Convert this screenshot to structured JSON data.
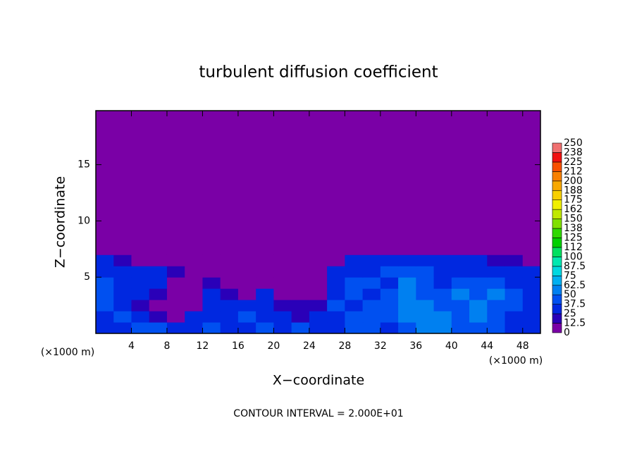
{
  "chart_data": {
    "type": "heatmap",
    "title": "turbulent diffusion coefficient",
    "xlabel": "X−coordinate",
    "ylabel": "Z−coordinate",
    "x_unit": "(×1000 m)",
    "y_unit": "(×1000 m)",
    "footer": "CONTOUR INTERVAL = 2.000E+01",
    "xlim": [
      0,
      50
    ],
    "ylim": [
      0,
      19.8
    ],
    "xticks": [
      4,
      8,
      12,
      16,
      20,
      24,
      28,
      32,
      36,
      40,
      44,
      48
    ],
    "yticks": [
      5,
      10,
      15
    ],
    "x_edges": [
      0,
      2,
      4,
      6,
      8,
      10,
      12,
      14,
      16,
      18,
      20,
      22,
      24,
      26,
      28,
      30,
      32,
      34,
      36,
      38,
      40,
      42,
      44,
      46,
      48,
      50
    ],
    "y_edges": [
      0,
      1,
      2,
      3,
      4,
      5,
      6,
      7,
      8,
      19.8
    ],
    "z": [
      [
        30,
        35,
        40,
        40,
        35,
        30,
        45,
        30,
        35,
        40,
        30,
        40,
        35,
        30,
        45,
        40,
        35,
        45,
        50,
        55,
        40,
        45,
        40,
        35,
        30
      ],
      [
        35,
        40,
        30,
        20,
        10,
        25,
        35,
        30,
        40,
        35,
        25,
        20,
        30,
        35,
        40,
        40,
        45,
        60,
        55,
        50,
        45,
        50,
        40,
        35,
        30
      ],
      [
        40,
        30,
        20,
        10,
        5,
        10,
        30,
        35,
        30,
        25,
        15,
        15,
        20,
        40,
        35,
        40,
        45,
        55,
        60,
        45,
        45,
        60,
        45,
        40,
        35
      ],
      [
        45,
        35,
        25,
        15,
        5,
        5,
        35,
        20,
        10,
        30,
        5,
        5,
        10,
        30,
        40,
        35,
        40,
        55,
        45,
        40,
        50,
        45,
        50,
        40,
        35
      ],
      [
        40,
        35,
        30,
        25,
        10,
        5,
        15,
        5,
        5,
        10,
        5,
        5,
        5,
        35,
        40,
        40,
        35,
        50,
        40,
        35,
        45,
        40,
        40,
        35,
        30
      ],
      [
        35,
        30,
        25,
        30,
        15,
        0,
        5,
        0,
        0,
        0,
        0,
        0,
        0,
        30,
        35,
        35,
        40,
        45,
        40,
        30,
        35,
        35,
        30,
        30,
        30
      ],
      [
        25,
        15,
        5,
        5,
        0,
        0,
        0,
        0,
        0,
        0,
        0,
        0,
        0,
        10,
        25,
        25,
        30,
        30,
        30,
        25,
        25,
        25,
        20,
        15,
        5
      ],
      [
        0,
        0,
        0,
        0,
        0,
        0,
        0,
        0,
        0,
        0,
        0,
        0,
        0,
        0,
        0,
        0,
        5,
        10,
        5,
        0,
        0,
        0,
        0,
        0,
        0
      ],
      [
        0,
        0,
        0,
        0,
        0,
        0,
        0,
        0,
        0,
        0,
        0,
        0,
        0,
        0,
        0,
        0,
        0,
        0,
        0,
        0,
        0,
        0,
        0,
        0,
        0
      ]
    ],
    "levels": [
      0,
      12.5,
      25,
      37.5,
      50,
      62.5,
      75,
      87.5,
      100,
      112,
      125,
      138,
      150,
      162,
      175,
      188,
      200,
      212,
      225,
      238,
      250
    ],
    "colors": [
      "#7a00a6",
      "#2a00b8",
      "#0028e0",
      "#0050f0",
      "#0080f0",
      "#00b0f0",
      "#00d8e0",
      "#00e8b0",
      "#00e060",
      "#00d000",
      "#30d800",
      "#80e000",
      "#c0e800",
      "#f0f000",
      "#f8d000",
      "#f8a800",
      "#f88000",
      "#f85000",
      "#f01010",
      "#f07070"
    ]
  }
}
